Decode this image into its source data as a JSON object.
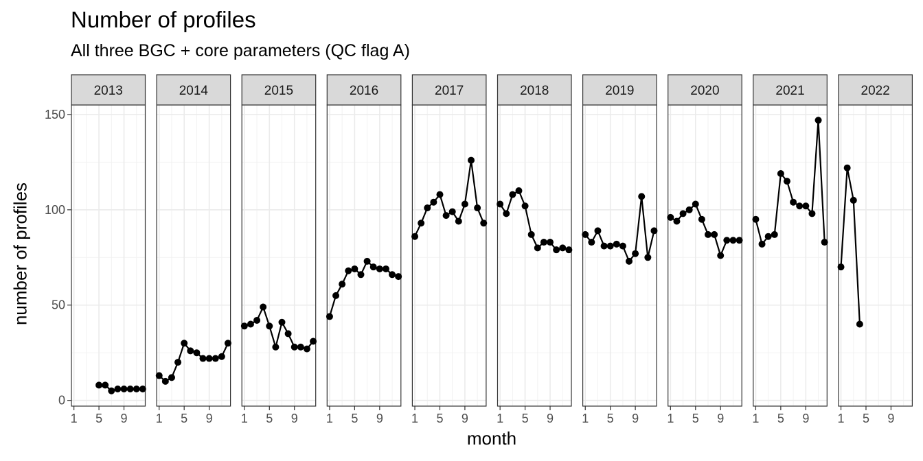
{
  "chart_data": {
    "type": "line",
    "title": "Number of profiles",
    "subtitle": "All three BGC + core parameters (QC flag A)",
    "xlabel": "month",
    "ylabel": "number of profiles",
    "facets": [
      "2013",
      "2014",
      "2015",
      "2016",
      "2017",
      "2018",
      "2019",
      "2020",
      "2021",
      "2022"
    ],
    "x_ticks": [
      1,
      5,
      9
    ],
    "y_ticks": [
      0,
      50,
      100,
      150
    ],
    "xlim": [
      0.6,
      12.4
    ],
    "ylim": [
      -3,
      155
    ],
    "grid": true,
    "series": [
      {
        "facet": "2013",
        "x": [
          5,
          6,
          7,
          8,
          9,
          10,
          11,
          12
        ],
        "values": [
          8,
          8,
          5,
          6,
          6,
          6,
          6,
          6
        ]
      },
      {
        "facet": "2014",
        "x": [
          1,
          2,
          3,
          4,
          5,
          6,
          7,
          8,
          9,
          10,
          11,
          12
        ],
        "values": [
          13,
          10,
          12,
          20,
          30,
          26,
          25,
          22,
          22,
          22,
          23,
          30
        ]
      },
      {
        "facet": "2015",
        "x": [
          1,
          2,
          3,
          4,
          5,
          6,
          7,
          8,
          9,
          10,
          11,
          12
        ],
        "values": [
          39,
          40,
          42,
          49,
          39,
          28,
          41,
          35,
          28,
          28,
          27,
          31
        ]
      },
      {
        "facet": "2016",
        "x": [
          1,
          2,
          3,
          4,
          5,
          6,
          7,
          8,
          9,
          10,
          11,
          12
        ],
        "values": [
          44,
          55,
          61,
          68,
          69,
          66,
          73,
          70,
          69,
          69,
          66,
          65
        ]
      },
      {
        "facet": "2017",
        "x": [
          1,
          2,
          3,
          4,
          5,
          6,
          7,
          8,
          9,
          10,
          11,
          12
        ],
        "values": [
          86,
          93,
          101,
          104,
          108,
          97,
          99,
          94,
          103,
          126,
          101,
          93
        ]
      },
      {
        "facet": "2018",
        "x": [
          1,
          2,
          3,
          4,
          5,
          6,
          7,
          8,
          9,
          10,
          11,
          12
        ],
        "values": [
          103,
          98,
          108,
          110,
          102,
          87,
          80,
          83,
          83,
          79,
          80,
          79
        ]
      },
      {
        "facet": "2019",
        "x": [
          1,
          2,
          3,
          4,
          5,
          6,
          7,
          8,
          9,
          10,
          11,
          12
        ],
        "values": [
          87,
          83,
          89,
          81,
          81,
          82,
          81,
          73,
          77,
          107,
          75,
          89
        ]
      },
      {
        "facet": "2020",
        "x": [
          1,
          2,
          3,
          4,
          5,
          6,
          7,
          8,
          9,
          10,
          11,
          12
        ],
        "values": [
          96,
          94,
          98,
          100,
          103,
          95,
          87,
          87,
          76,
          84,
          84,
          84
        ]
      },
      {
        "facet": "2021",
        "x": [
          1,
          2,
          3,
          4,
          5,
          6,
          7,
          8,
          9,
          10,
          11,
          12
        ],
        "values": [
          95,
          82,
          86,
          87,
          119,
          115,
          104,
          102,
          102,
          98,
          147,
          83
        ]
      },
      {
        "facet": "2022",
        "x": [
          1,
          2,
          3,
          4
        ],
        "values": [
          70,
          122,
          105,
          40
        ]
      }
    ]
  }
}
